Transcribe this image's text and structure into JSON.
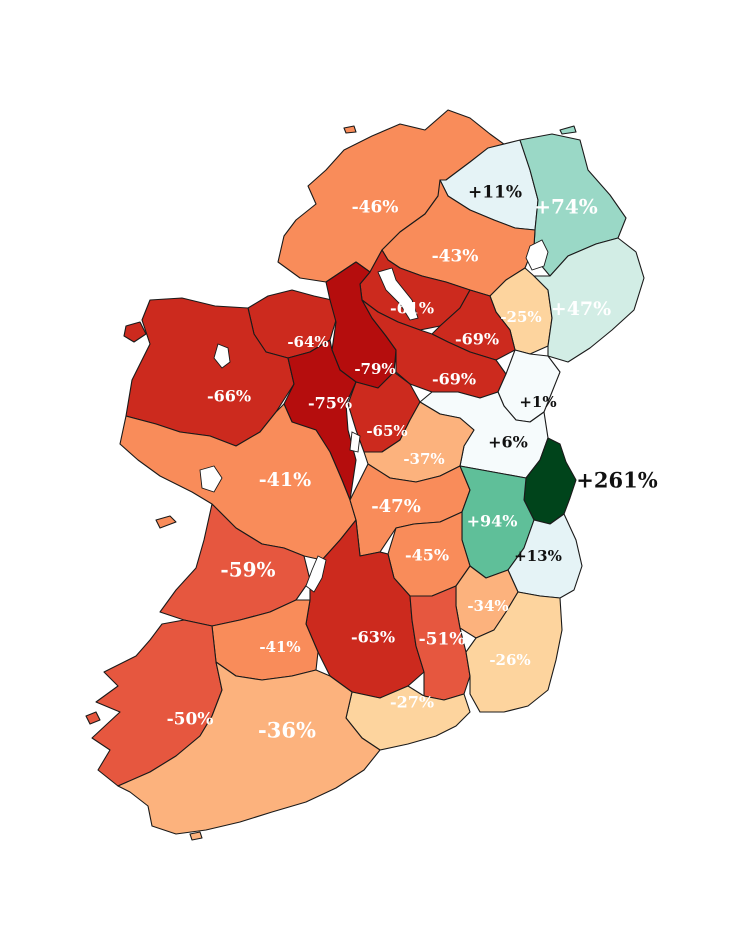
{
  "colors": {
    "red_darkest": "#b50d0d",
    "red_dark": "#cc2a1e",
    "red_mid": "#e6573f",
    "orange": "#f98c5a",
    "orange_light": "#fcb27d",
    "peach": "#fdd49e",
    "teal_pale": "#d2ede5",
    "blue_pale": "#e5f3f6",
    "white_pale": "#f6fbfc",
    "teal_mid": "#9ad8c6",
    "green_mid": "#5fbf99",
    "green_darkest": "#00441b"
  },
  "regions": [
    {
      "name": "Donegal",
      "label": "-46%",
      "color": "orange"
    },
    {
      "name": "Derry",
      "label": "+11%",
      "color": "blue_pale"
    },
    {
      "name": "Antrim",
      "label": "+74%",
      "color": "teal_mid"
    },
    {
      "name": "Tyrone",
      "label": "-43%",
      "color": "orange"
    },
    {
      "name": "Armagh",
      "label": "-25%",
      "color": "peach"
    },
    {
      "name": "Down",
      "label": "+47%",
      "color": "teal_pale"
    },
    {
      "name": "Fermanagh",
      "label": "-61%",
      "color": "red_dark"
    },
    {
      "name": "Monaghan",
      "label": "-69%",
      "color": "red_dark"
    },
    {
      "name": "Leitrim",
      "label": "-79%",
      "color": "red_darkest"
    },
    {
      "name": "Sligo",
      "label": "-64%",
      "color": "red_dark"
    },
    {
      "name": "Mayo",
      "label": "-66%",
      "color": "red_dark"
    },
    {
      "name": "Roscommon",
      "label": "-75%",
      "color": "red_darkest"
    },
    {
      "name": "Cavan",
      "label": "-69%",
      "color": "red_dark"
    },
    {
      "name": "Longford",
      "label": "-65%",
      "color": "red_dark"
    },
    {
      "name": "Louth",
      "label": "+1%",
      "color": "white_pale"
    },
    {
      "name": "Meath",
      "label": "+6%",
      "color": "white_pale"
    },
    {
      "name": "Westmeath",
      "label": "-37%",
      "color": "orange_light"
    },
    {
      "name": "Dublin",
      "label": "+261%",
      "color": "green_darkest"
    },
    {
      "name": "Galway",
      "label": "-41%",
      "color": "orange"
    },
    {
      "name": "Offaly",
      "label": "-47%",
      "color": "orange"
    },
    {
      "name": "Kildare",
      "label": "+94%",
      "color": "green_mid"
    },
    {
      "name": "Wicklow",
      "label": "+13%",
      "color": "blue_pale"
    },
    {
      "name": "Laois",
      "label": "-45%",
      "color": "orange"
    },
    {
      "name": "Clare",
      "label": "-59%",
      "color": "red_mid"
    },
    {
      "name": "Carlow",
      "label": "-34%",
      "color": "orange_light"
    },
    {
      "name": "Tipperary",
      "label": "-63%",
      "color": "red_dark"
    },
    {
      "name": "Kilkenny",
      "label": "-51%",
      "color": "red_mid"
    },
    {
      "name": "Limerick",
      "label": "-41%",
      "color": "orange"
    },
    {
      "name": "Wexford",
      "label": "-26%",
      "color": "peach"
    },
    {
      "name": "Kerry",
      "label": "-50%",
      "color": "red_mid"
    },
    {
      "name": "Waterford",
      "label": "-27%",
      "color": "peach"
    },
    {
      "name": "Cork",
      "label": "-36%",
      "color": "orange_light"
    }
  ]
}
